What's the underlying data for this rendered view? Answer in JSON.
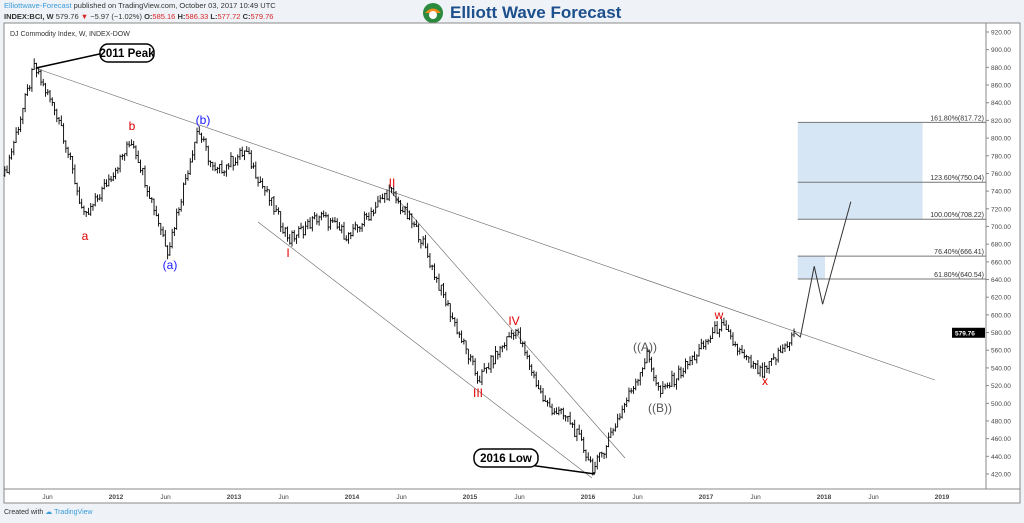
{
  "header": {
    "publisher": "Elliottwave-Forecast",
    "published_text": "published on TradingView.com, October 03, 2017 10:49 UTC",
    "symbol": "INDEX:BCI, W",
    "last": "579.76",
    "change": "−5.97 (−1.02%)",
    "open_label": "O:",
    "open": "585.16",
    "high_label": "H:",
    "high": "586.33",
    "low_label": "L:",
    "low": "577.72",
    "close_label": "C:",
    "close": "579.76"
  },
  "logo": {
    "text": "Elliott Wave Forecast"
  },
  "footer": {
    "created_with": "Created with",
    "brand": "TradingView"
  },
  "chart_data": {
    "type": "ohlc",
    "title": "DJ Commodity Index, W, INDEX-DOW",
    "ylim": [
      410,
      925
    ],
    "y_ticks": [
      "920.00",
      "900.00",
      "880.00",
      "860.00",
      "840.00",
      "820.00",
      "800.00",
      "780.00",
      "760.00",
      "740.00",
      "720.00",
      "700.00",
      "680.00",
      "660.00",
      "640.00",
      "620.00",
      "600.00",
      "580.00",
      "560.00",
      "540.00",
      "520.00",
      "500.00",
      "480.00",
      "460.00",
      "440.00",
      "420.00"
    ],
    "x_ticks": [
      "Jun",
      "2012",
      "Jun",
      "2013",
      "Jun",
      "2014",
      "Jun",
      "2015",
      "Jun",
      "2016",
      "Jun",
      "2017",
      "Jun",
      "2018",
      "Jun",
      "2019"
    ],
    "last_price": "579.76",
    "price_path": [
      [
        "2011-01-22",
        758
      ],
      [
        "2011-04-23",
        880
      ],
      [
        "2011-07-12",
        820
      ],
      [
        "2011-09-26",
        707
      ],
      [
        "2012-02-20",
        798
      ],
      [
        "2012-06-10",
        673
      ],
      [
        "2012-09-10",
        811
      ],
      [
        "2012-11-01",
        760
      ],
      [
        "2013-02-05",
        785
      ],
      [
        "2013-06-22",
        685
      ],
      [
        "2013-09-23",
        712
      ],
      [
        "2013-12-25",
        688
      ],
      [
        "2014-04-27",
        741
      ],
      [
        "2014-07-30",
        690
      ],
      [
        "2014-10-01",
        630
      ],
      [
        "2015-01-27",
        526
      ],
      [
        "2015-05-20",
        585
      ],
      [
        "2015-08-20",
        500
      ],
      [
        "2015-11-06",
        480
      ],
      [
        "2016-01-20",
        425
      ],
      [
        "2016-07-04",
        555
      ],
      [
        "2016-08-11",
        510
      ],
      [
        "2016-12-13",
        560
      ],
      [
        "2017-02-13",
        589
      ],
      [
        "2017-05-01",
        550
      ],
      [
        "2017-06-25",
        532
      ],
      [
        "2017-10-03",
        579.76
      ]
    ],
    "projection": [
      [
        "2017-10-03",
        579.76
      ],
      [
        "2017-10-20",
        575
      ],
      [
        "2017-12-02",
        655
      ],
      [
        "2017-12-28",
        612
      ],
      [
        "2018-03-25",
        728
      ]
    ],
    "fib_levels": [
      {
        "label": "161.80%(817.72)",
        "value": 817.72
      },
      {
        "label": "123.60%(750.04)",
        "value": 750.04
      },
      {
        "label": "100.00%(708.22)",
        "value": 708.22
      },
      {
        "label": "76.40%(666.41)",
        "value": 666.41
      },
      {
        "label": "61.80%(640.54)",
        "value": 640.54
      }
    ],
    "callouts": {
      "peak": "2011 Peak",
      "low": "2016 Low"
    },
    "wave_labels": {
      "a": "a",
      "b": "b",
      "pa": "(a)",
      "pb": "(b)",
      "I": "I",
      "II": "II",
      "III": "III",
      "IV": "IV",
      "A": "((A))",
      "B": "((B))",
      "w": "w",
      "x": "x"
    },
    "colors": {
      "bars": "#000000",
      "wave_red": "#e00000",
      "wave_blue": "#1a1aff",
      "wave_gray": "#555555",
      "fib_box": "#d6e6f5",
      "last_badge": "#000000"
    }
  }
}
